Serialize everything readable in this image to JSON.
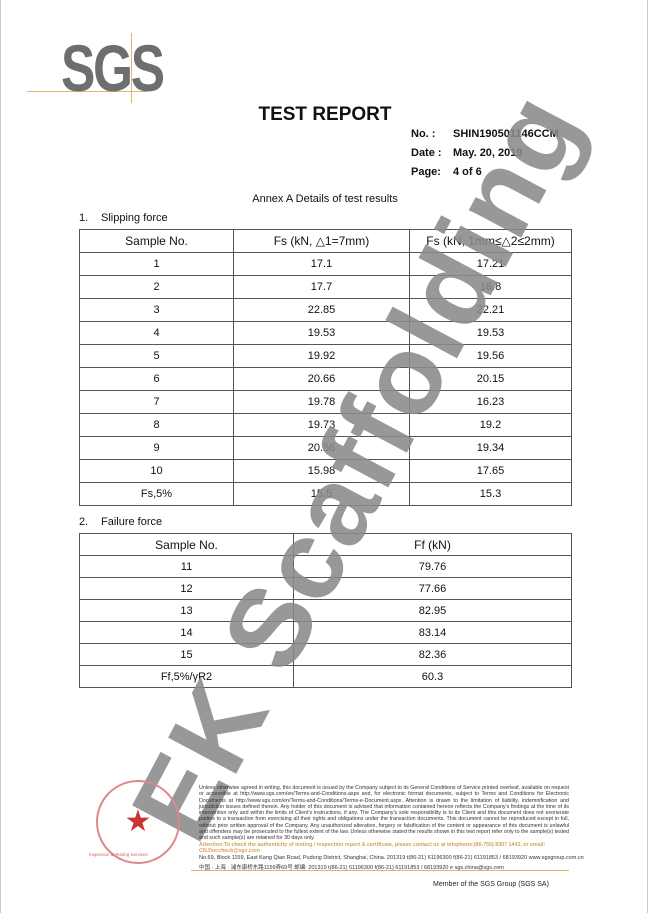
{
  "header": {
    "logo": "SGS",
    "title": "TEST REPORT",
    "no_label": "No.  :",
    "no": "SHIN190501146CCM",
    "date_label": "Date :",
    "date": "May. 20, 2019",
    "page_label": "Page:",
    "page": "4 of 6"
  },
  "annex_title": "Annex A Details of test results",
  "section1": {
    "num": "1.",
    "title": "Slipping force",
    "headers": [
      "Sample No.",
      "Fs (kN, △1=7mm)",
      "Fs (kN, 1mm≤△2≤2mm)"
    ],
    "rows": [
      [
        "1",
        "17.1",
        "17.21"
      ],
      [
        "2",
        "17.7",
        "16.8"
      ],
      [
        "3",
        "22.85",
        "22.21"
      ],
      [
        "4",
        "19.53",
        "19.53"
      ],
      [
        "5",
        "19.92",
        "19.56"
      ],
      [
        "6",
        "20.66",
        "20.15"
      ],
      [
        "7",
        "19.78",
        "16.23"
      ],
      [
        "8",
        "19.73",
        "19.2"
      ],
      [
        "9",
        "20.56",
        "19.34"
      ],
      [
        "10",
        "15.98",
        "17.65"
      ],
      [
        "Fs,5%",
        "15.5",
        "15.3"
      ]
    ]
  },
  "section2": {
    "num": "2.",
    "title": "Failure force",
    "headers": [
      "Sample No.",
      "Ff (kN)"
    ],
    "rows": [
      [
        "11",
        "79.76"
      ],
      [
        "12",
        "77.66"
      ],
      [
        "13",
        "82.95"
      ],
      [
        "14",
        "83.14"
      ],
      [
        "15",
        "82.36"
      ],
      [
        "Ff,5%/γR2",
        "60.3"
      ]
    ]
  },
  "watermark": "EK Scaffolding",
  "footer": {
    "disclaimer": "Unless otherwise agreed in writing, this document is issued by the Company subject to its General Conditions of Service printed overleaf, available on request or accessible at http://www.sgs.com/en/Terms-and-Conditions.aspx and, for electronic format documents, subject to Terms and Conditions for Electronic Documents at http://www.sgs.com/en/Terms-and-Conditions/Terms-e-Document.aspx. Attention is drawn to the limitation of liability, indemnification and jurisdiction issues defined therein. Any holder of this document is advised that information contained hereon reflects the Company's findings at the time of its intervention only and within the limits of Client's instructions, if any. The Company's sole responsibility is to its Client and this document does not exonerate parties to a transaction from exercising all their rights and obligations under the transaction documents. This document cannot be reproduced except in full, without prior written approval of the Company. Any unauthorized alteration, forgery or falsification of the content or appearance of this document is unlawful and offenders may be prosecuted to the fullest extent of the law. Unless otherwise stated the results shown in this test report refer only to the sample(s) tested and such sample(s) are retained for 30 days only.",
    "attention": "Attention:To check the authenticity of testing / inspection report & certificate, please contact us at telephone:(86-755) 8307 1443, or email: CN.Doccheck@sgs.com",
    "address_en": "No.69, Block 1159, East Kang Qiao Road, Pudong District, Shanghai, China. 201319    t(86-21) 61196300    f(86-21) 61191853 / 68193920    www.sgsgroup.com.cn",
    "address_cn": "中国 · 上海 · 浦东康桥东路1159弄69号  邮编: 201319    t(86-21) 61196300    f(86-21) 61191853 / 68193920    e sgs.china@sgs.com",
    "lab_name": "Inspection & Testing Services",
    "member": "Member of the SGS Group (SGS SA)"
  }
}
